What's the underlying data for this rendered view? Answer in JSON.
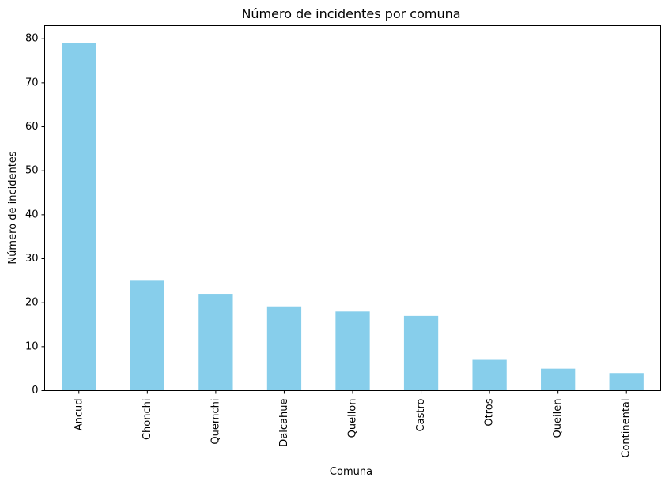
{
  "chart_data": {
    "type": "bar",
    "title": "Número de incidentes por comuna",
    "xlabel": "Comuna",
    "ylabel": "Número de incidentes",
    "categories": [
      "Ancud",
      "Chonchi",
      "Quemchi",
      "Dalcahue",
      "Quellon",
      "Castro",
      "Otros",
      "Queilen",
      "Continental"
    ],
    "values": [
      79,
      25,
      22,
      19,
      18,
      17,
      7,
      5,
      4
    ],
    "ylim": [
      0,
      83
    ],
    "yticks": [
      0,
      10,
      20,
      30,
      40,
      50,
      60,
      70,
      80
    ],
    "bar_color": "#87CEEB",
    "grid": false,
    "legend": "none"
  }
}
